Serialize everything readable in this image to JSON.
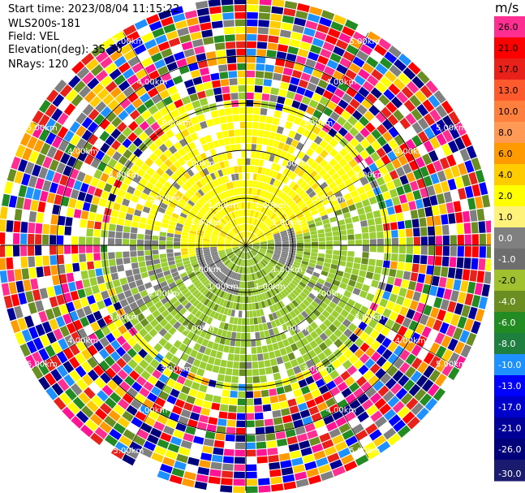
{
  "info": {
    "start_time": "Start time: 2023/08/04 11:15:22",
    "instrument": "WLS200s-181",
    "field": "Field: VEL",
    "elevation": "Elevation(deg): 35.30",
    "nrays": "NRays: 120"
  },
  "colorbar": {
    "unit": "m/s",
    "ticks": [
      "26.0",
      "21.0",
      "17.0",
      "13.0",
      "10.0",
      "8.0",
      "6.0",
      "4.0",
      "2.0",
      "1.0",
      "0.0",
      "-1.0",
      "-2.0",
      "-4.0",
      "-6.0",
      "-8.0",
      "-10.0",
      "-13.0",
      "-17.0",
      "-21.0",
      "-26.0",
      "-30.0"
    ],
    "colors": [
      "#ff2f92",
      "#ff0000",
      "#e8221a",
      "#ff5a2d",
      "#ff7f3f",
      "#ff9955",
      "#ff9b00",
      "#ffcc00",
      "#ffff00",
      "#fff27a",
      "#808080",
      "#6e6e6e",
      "#a0c030",
      "#6b8e23",
      "#228b22",
      "#1f7f3f",
      "#1e90ff",
      "#0000ff",
      "#0000cd",
      "#000099",
      "#00007a",
      "#1a1a6e"
    ]
  },
  "chart_data": {
    "type": "polar-ppi",
    "field": "VEL",
    "unit": "m/s",
    "nrays": 120,
    "range_rings_km": [
      1.0,
      2.0,
      3.0,
      4.0
    ],
    "range_labels": [
      "1.00km",
      "2.00km",
      "3.00km",
      "4.00km",
      "5.00km"
    ],
    "colorbar_range": [
      -30.0,
      26.0
    ]
  }
}
